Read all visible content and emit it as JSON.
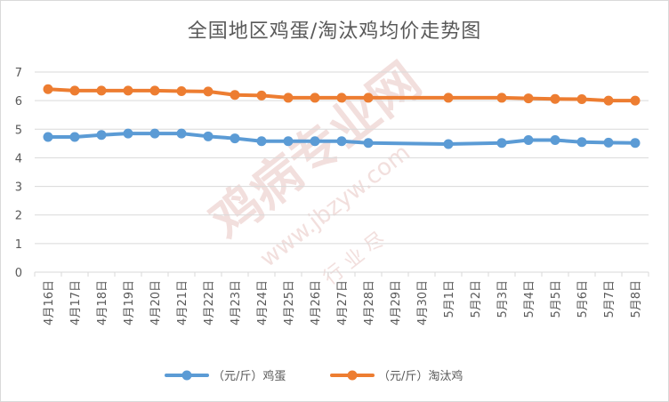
{
  "chart_data": {
    "type": "line",
    "title": "全国地区鸡蛋/淘汰鸡均价走势图",
    "xlabel": "",
    "ylabel": "",
    "ylim": [
      0,
      7
    ],
    "yticks": [
      0,
      1,
      2,
      3,
      4,
      5,
      6,
      7
    ],
    "grid": true,
    "legend_position": "bottom",
    "categories": [
      "4月16日",
      "4月17日",
      "4月18日",
      "4月19日",
      "4月20日",
      "4月21日",
      "4月22日",
      "4月23日",
      "4月24日",
      "4月25日",
      "4月26日",
      "4月27日",
      "4月28日",
      "4月29日",
      "4月30日",
      "5月1日",
      "5月2日",
      "5月3日",
      "5月4日",
      "5月5日",
      "5月6日",
      "5月7日",
      "5月8日"
    ],
    "series": [
      {
        "name": "（元/斤）鸡蛋",
        "color": "#5b9bd5",
        "values": [
          4.73,
          4.73,
          4.8,
          4.85,
          4.85,
          4.85,
          4.75,
          4.68,
          4.58,
          4.58,
          4.58,
          4.58,
          4.52,
          null,
          null,
          4.48,
          null,
          4.52,
          4.62,
          4.62,
          4.55,
          4.53,
          4.52
        ]
      },
      {
        "name": "（元/斤）淘汰鸡",
        "color": "#ed7d31",
        "values": [
          6.4,
          6.35,
          6.35,
          6.35,
          6.35,
          6.33,
          6.32,
          6.2,
          6.18,
          6.1,
          6.1,
          6.1,
          6.1,
          null,
          null,
          6.1,
          null,
          6.1,
          6.08,
          6.06,
          6.05,
          6.0,
          6.0
        ]
      }
    ]
  },
  "watermark": {
    "main": "鸡病专业网",
    "url": "www.jbzyw.com",
    "sub": "行 业 尽"
  }
}
